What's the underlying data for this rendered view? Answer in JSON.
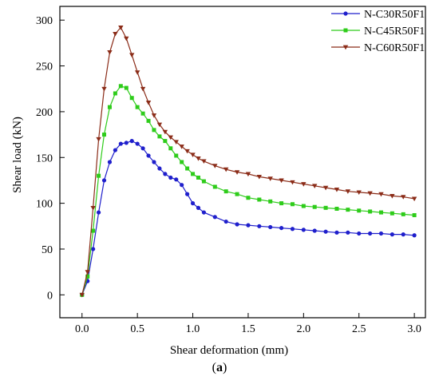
{
  "caption": {
    "open": "(",
    "letter": "a",
    "close": ")"
  },
  "chart_data": {
    "type": "line",
    "title": "",
    "xlabel": "Shear deformation (mm)",
    "ylabel": "Shear load (kN)",
    "xlim": [
      -0.2,
      3.1
    ],
    "ylim": [
      -25,
      315
    ],
    "xticks": [
      0.0,
      0.5,
      1.0,
      1.5,
      2.0,
      2.5,
      3.0
    ],
    "xtick_labels": [
      "0.0",
      "0.5",
      "1.0",
      "1.5",
      "2.0",
      "2.5",
      "3.0"
    ],
    "yticks": [
      0,
      50,
      100,
      150,
      200,
      250,
      300
    ],
    "ytick_labels": [
      "0",
      "50",
      "100",
      "150",
      "200",
      "250",
      "300"
    ],
    "grid": false,
    "legend_position": "top-right",
    "series": [
      {
        "name": "N-C30R50F1",
        "color": "#1f1fcc",
        "marker": "circle",
        "x": [
          0.0,
          0.05,
          0.1,
          0.15,
          0.2,
          0.25,
          0.3,
          0.35,
          0.4,
          0.45,
          0.5,
          0.55,
          0.6,
          0.65,
          0.7,
          0.75,
          0.8,
          0.85,
          0.9,
          0.95,
          1.0,
          1.05,
          1.1,
          1.2,
          1.3,
          1.4,
          1.5,
          1.6,
          1.7,
          1.8,
          1.9,
          2.0,
          2.1,
          2.2,
          2.3,
          2.4,
          2.5,
          2.6,
          2.7,
          2.8,
          2.9,
          3.0
        ],
        "y": [
          0,
          15,
          50,
          90,
          125,
          145,
          158,
          165,
          166,
          168,
          165,
          160,
          152,
          145,
          138,
          132,
          128,
          126,
          120,
          110,
          100,
          95,
          90,
          85,
          80,
          77,
          76,
          75,
          74,
          73,
          72,
          71,
          70,
          69,
          68,
          68,
          67,
          67,
          67,
          66,
          66,
          65
        ]
      },
      {
        "name": "N-C45R50F1",
        "color": "#2ecc1a",
        "marker": "square",
        "x": [
          0.0,
          0.05,
          0.1,
          0.15,
          0.2,
          0.25,
          0.3,
          0.35,
          0.4,
          0.45,
          0.5,
          0.55,
          0.6,
          0.65,
          0.7,
          0.75,
          0.8,
          0.85,
          0.9,
          0.95,
          1.0,
          1.05,
          1.1,
          1.2,
          1.3,
          1.4,
          1.5,
          1.6,
          1.7,
          1.8,
          1.9,
          2.0,
          2.1,
          2.2,
          2.3,
          2.4,
          2.5,
          2.6,
          2.7,
          2.8,
          2.9,
          3.0
        ],
        "y": [
          0,
          20,
          70,
          130,
          175,
          205,
          220,
          228,
          226,
          215,
          205,
          198,
          190,
          180,
          173,
          168,
          160,
          152,
          145,
          138,
          132,
          128,
          124,
          118,
          113,
          110,
          106,
          104,
          102,
          100,
          99,
          97,
          96,
          95,
          94,
          93,
          92,
          91,
          90,
          89,
          88,
          87
        ]
      },
      {
        "name": "N-C60R50F1",
        "color": "#8b2c18",
        "marker": "triangle-down",
        "x": [
          0.0,
          0.05,
          0.1,
          0.15,
          0.2,
          0.25,
          0.3,
          0.35,
          0.4,
          0.45,
          0.5,
          0.55,
          0.6,
          0.65,
          0.7,
          0.75,
          0.8,
          0.85,
          0.9,
          0.95,
          1.0,
          1.05,
          1.1,
          1.2,
          1.3,
          1.4,
          1.5,
          1.6,
          1.7,
          1.8,
          1.9,
          2.0,
          2.1,
          2.2,
          2.3,
          2.4,
          2.5,
          2.6,
          2.7,
          2.8,
          2.9,
          3.0
        ],
        "y": [
          0,
          25,
          95,
          170,
          225,
          265,
          285,
          292,
          280,
          262,
          243,
          225,
          210,
          196,
          186,
          178,
          172,
          167,
          162,
          157,
          153,
          149,
          146,
          141,
          137,
          134,
          132,
          129,
          127,
          125,
          123,
          121,
          119,
          117,
          115,
          113,
          112,
          111,
          110,
          108,
          107,
          105
        ]
      }
    ]
  }
}
